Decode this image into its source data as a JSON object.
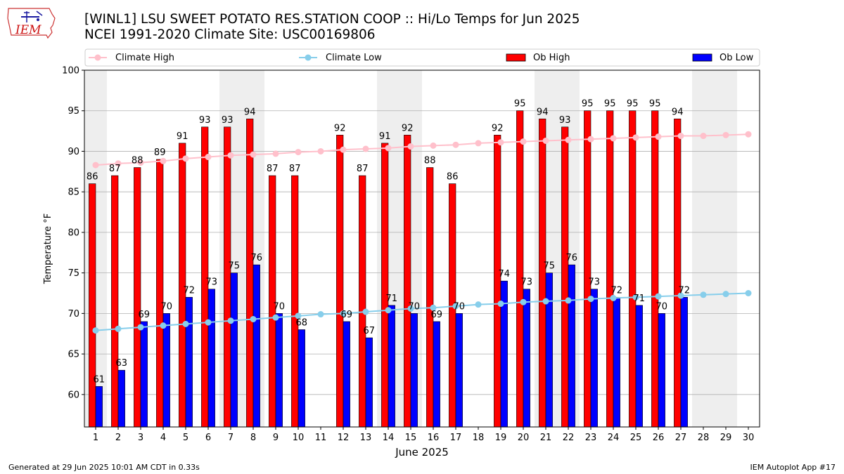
{
  "header": {
    "title_line1": "[WINL1] LSU SWEET POTATO RES.STATION COOP :: Hi/Lo Temps for Jun 2025",
    "title_line2": "NCEI 1991-2020 Climate Site: USC00169806",
    "logo_text": "IEM"
  },
  "footer": {
    "generated": "Generated at 29 Jun 2025 10:01 AM CDT in 0.33s",
    "app": "IEM Autoplot App #17"
  },
  "colors": {
    "ob_high": "#ff0000",
    "ob_low": "#0000ff",
    "climate_high": "#ffc0cb",
    "climate_low": "#87ceeb",
    "weekend_shade": "#eeeeee",
    "grid": "#b0b0b0"
  },
  "chart_data": {
    "type": "bar",
    "xlabel": "June 2025",
    "ylabel": "Temperature °F",
    "ylim": [
      56,
      100
    ],
    "yticks": [
      60,
      65,
      70,
      75,
      80,
      85,
      90,
      95,
      100
    ],
    "grid": "horizontal",
    "legend_placement": "top",
    "categories": [
      "1",
      "2",
      "3",
      "4",
      "5",
      "6",
      "7",
      "8",
      "9",
      "10",
      "11",
      "12",
      "13",
      "14",
      "15",
      "16",
      "17",
      "18",
      "19",
      "20",
      "21",
      "22",
      "23",
      "24",
      "25",
      "26",
      "27",
      "28",
      "29",
      "30"
    ],
    "weekend_days": [
      1,
      7,
      8,
      14,
      15,
      21,
      22,
      28,
      29
    ],
    "series": [
      {
        "name": "Climate High",
        "kind": "line",
        "values": [
          88.3,
          88.5,
          88.6,
          88.8,
          89.1,
          89.3,
          89.5,
          89.6,
          89.7,
          89.9,
          90.0,
          90.2,
          90.3,
          90.4,
          90.6,
          90.7,
          90.8,
          91.0,
          91.1,
          91.2,
          91.3,
          91.4,
          91.5,
          91.6,
          91.7,
          91.8,
          91.9,
          91.9,
          92.0,
          92.1
        ]
      },
      {
        "name": "Climate Low",
        "kind": "line",
        "values": [
          67.9,
          68.1,
          68.3,
          68.5,
          68.7,
          68.9,
          69.1,
          69.3,
          69.5,
          69.7,
          69.9,
          70.0,
          70.2,
          70.4,
          70.6,
          70.7,
          70.9,
          71.1,
          71.2,
          71.4,
          71.5,
          71.6,
          71.8,
          71.9,
          72.0,
          72.1,
          72.2,
          72.3,
          72.4,
          72.5
        ]
      },
      {
        "name": "Ob High",
        "kind": "bar",
        "values": [
          86,
          87,
          88,
          89,
          91,
          93,
          93,
          94,
          87,
          87,
          null,
          92,
          87,
          91,
          92,
          88,
          86,
          null,
          92,
          95,
          94,
          93,
          95,
          95,
          95,
          95,
          94,
          null,
          null,
          null
        ]
      },
      {
        "name": "Ob Low",
        "kind": "bar",
        "values": [
          61,
          63,
          69,
          70,
          72,
          73,
          75,
          76,
          70,
          68,
          null,
          69,
          67,
          71,
          70,
          69,
          70,
          null,
          74,
          73,
          75,
          76,
          73,
          72,
          71,
          70,
          72,
          null,
          null,
          null
        ]
      }
    ]
  }
}
